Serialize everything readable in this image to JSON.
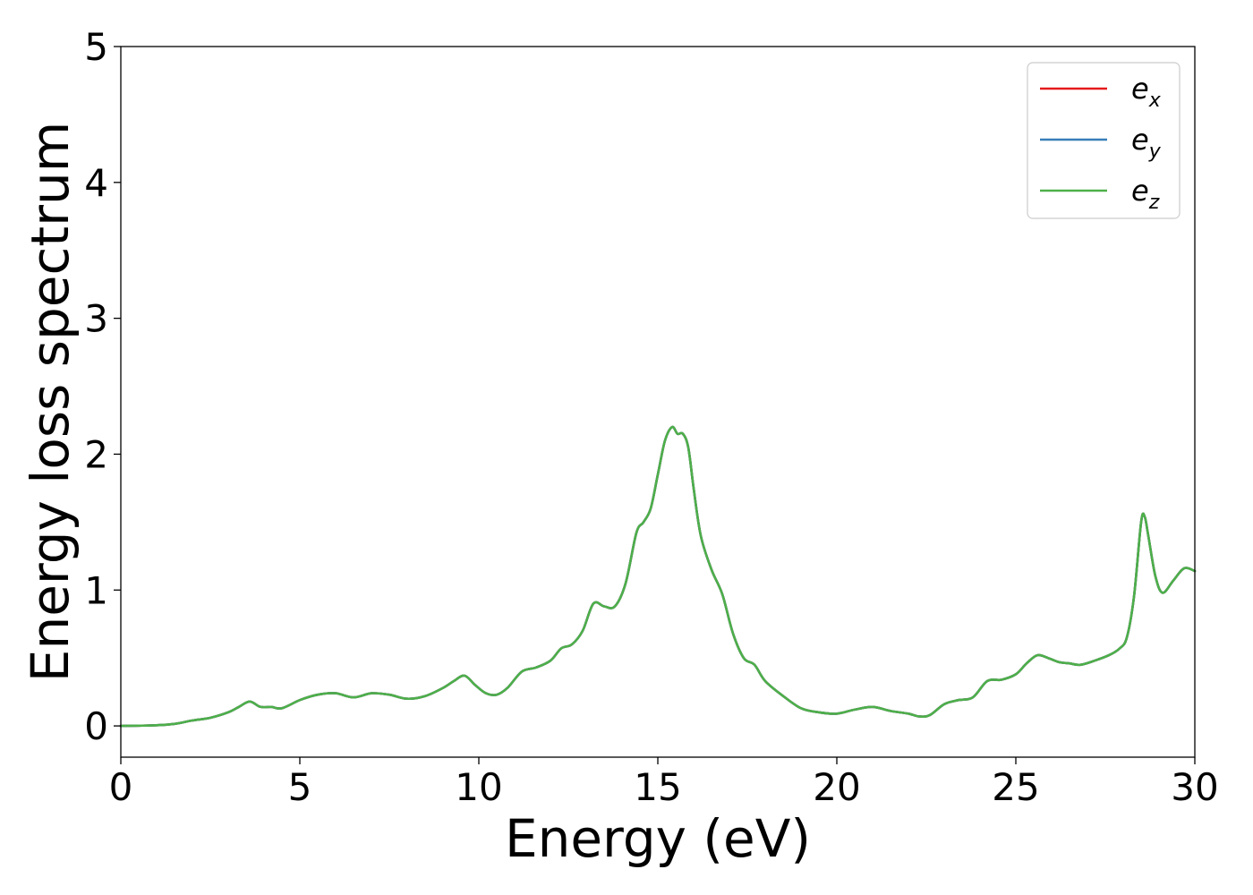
{
  "chart_data": {
    "type": "line",
    "title": "",
    "xlabel": "Energy (eV)",
    "ylabel": "Energy loss spectrum",
    "xlim": [
      0,
      30
    ],
    "ylim": [
      -0.23,
      5
    ],
    "xticks": [
      0,
      5,
      10,
      15,
      20,
      25,
      30
    ],
    "yticks": [
      0,
      1,
      2,
      3,
      4,
      5
    ],
    "grid": false,
    "legend_position": "top-right",
    "legend": [
      {
        "base": "e",
        "sub": "x",
        "color": "#e41a1c"
      },
      {
        "base": "e",
        "sub": "y",
        "color": "#377eb8"
      },
      {
        "base": "e",
        "sub": "z",
        "color": "#4daf4a"
      }
    ],
    "x": [
      0,
      0.5,
      1.0,
      1.5,
      2.0,
      2.5,
      3.0,
      3.3,
      3.6,
      3.9,
      4.2,
      4.5,
      5.0,
      5.5,
      6.0,
      6.5,
      7.0,
      7.5,
      8.0,
      8.5,
      9.0,
      9.3,
      9.6,
      9.9,
      10.2,
      10.5,
      10.8,
      11.2,
      11.6,
      12.0,
      12.3,
      12.6,
      12.9,
      13.2,
      13.5,
      13.8,
      14.1,
      14.4,
      14.6,
      14.8,
      15.0,
      15.2,
      15.4,
      15.55,
      15.7,
      15.85,
      16.0,
      16.2,
      16.5,
      16.8,
      17.1,
      17.4,
      17.7,
      18.0,
      18.5,
      19.0,
      19.5,
      20.0,
      20.5,
      21.0,
      21.5,
      22.0,
      22.3,
      22.6,
      23.0,
      23.4,
      23.8,
      24.2,
      24.6,
      25.0,
      25.3,
      25.6,
      25.9,
      26.2,
      26.5,
      26.8,
      27.2,
      27.6,
      27.9,
      28.1,
      28.3,
      28.5,
      28.6,
      28.7,
      28.9,
      29.1,
      29.4,
      29.7,
      30.0
    ],
    "series": [
      {
        "name": "e_x",
        "color": "#e41a1c",
        "values": [
          0,
          0.002,
          0.005,
          0.015,
          0.04,
          0.06,
          0.1,
          0.14,
          0.18,
          0.14,
          0.14,
          0.13,
          0.19,
          0.23,
          0.24,
          0.21,
          0.24,
          0.23,
          0.2,
          0.22,
          0.28,
          0.33,
          0.37,
          0.3,
          0.24,
          0.23,
          0.28,
          0.4,
          0.43,
          0.48,
          0.57,
          0.6,
          0.7,
          0.9,
          0.88,
          0.88,
          1.05,
          1.42,
          1.5,
          1.6,
          1.85,
          2.1,
          2.2,
          2.15,
          2.15,
          2.05,
          1.75,
          1.4,
          1.15,
          0.97,
          0.68,
          0.5,
          0.45,
          0.33,
          0.22,
          0.13,
          0.1,
          0.09,
          0.12,
          0.14,
          0.11,
          0.09,
          0.07,
          0.08,
          0.16,
          0.19,
          0.21,
          0.33,
          0.34,
          0.38,
          0.46,
          0.52,
          0.5,
          0.47,
          0.46,
          0.45,
          0.48,
          0.52,
          0.57,
          0.65,
          0.95,
          1.5,
          1.54,
          1.4,
          1.1,
          0.98,
          1.07,
          1.16,
          1.14
        ]
      },
      {
        "name": "e_y",
        "color": "#377eb8",
        "values": [
          0,
          0.002,
          0.005,
          0.015,
          0.04,
          0.06,
          0.1,
          0.14,
          0.18,
          0.14,
          0.14,
          0.13,
          0.19,
          0.23,
          0.24,
          0.21,
          0.24,
          0.23,
          0.2,
          0.22,
          0.28,
          0.33,
          0.37,
          0.3,
          0.24,
          0.23,
          0.28,
          0.4,
          0.43,
          0.48,
          0.57,
          0.6,
          0.7,
          0.9,
          0.88,
          0.88,
          1.05,
          1.42,
          1.5,
          1.6,
          1.85,
          2.1,
          2.2,
          2.15,
          2.15,
          2.05,
          1.75,
          1.4,
          1.15,
          0.97,
          0.68,
          0.5,
          0.45,
          0.33,
          0.22,
          0.13,
          0.1,
          0.09,
          0.12,
          0.14,
          0.11,
          0.09,
          0.07,
          0.08,
          0.16,
          0.19,
          0.21,
          0.33,
          0.34,
          0.38,
          0.46,
          0.52,
          0.5,
          0.47,
          0.46,
          0.45,
          0.48,
          0.52,
          0.57,
          0.65,
          0.95,
          1.5,
          1.54,
          1.4,
          1.1,
          0.98,
          1.07,
          1.16,
          1.14
        ]
      },
      {
        "name": "e_z",
        "color": "#4daf4a",
        "values": [
          0,
          0.002,
          0.005,
          0.015,
          0.04,
          0.06,
          0.1,
          0.14,
          0.18,
          0.14,
          0.14,
          0.13,
          0.19,
          0.23,
          0.24,
          0.21,
          0.24,
          0.23,
          0.2,
          0.22,
          0.28,
          0.33,
          0.37,
          0.3,
          0.24,
          0.23,
          0.28,
          0.4,
          0.43,
          0.48,
          0.57,
          0.6,
          0.7,
          0.9,
          0.88,
          0.88,
          1.05,
          1.42,
          1.5,
          1.6,
          1.85,
          2.1,
          2.2,
          2.15,
          2.15,
          2.05,
          1.75,
          1.4,
          1.15,
          0.97,
          0.68,
          0.5,
          0.45,
          0.33,
          0.22,
          0.13,
          0.1,
          0.09,
          0.12,
          0.14,
          0.11,
          0.09,
          0.07,
          0.08,
          0.16,
          0.19,
          0.21,
          0.33,
          0.34,
          0.38,
          0.46,
          0.52,
          0.5,
          0.47,
          0.46,
          0.45,
          0.48,
          0.52,
          0.57,
          0.65,
          0.95,
          1.5,
          1.54,
          1.4,
          1.1,
          0.98,
          1.07,
          1.16,
          1.14
        ]
      }
    ]
  }
}
